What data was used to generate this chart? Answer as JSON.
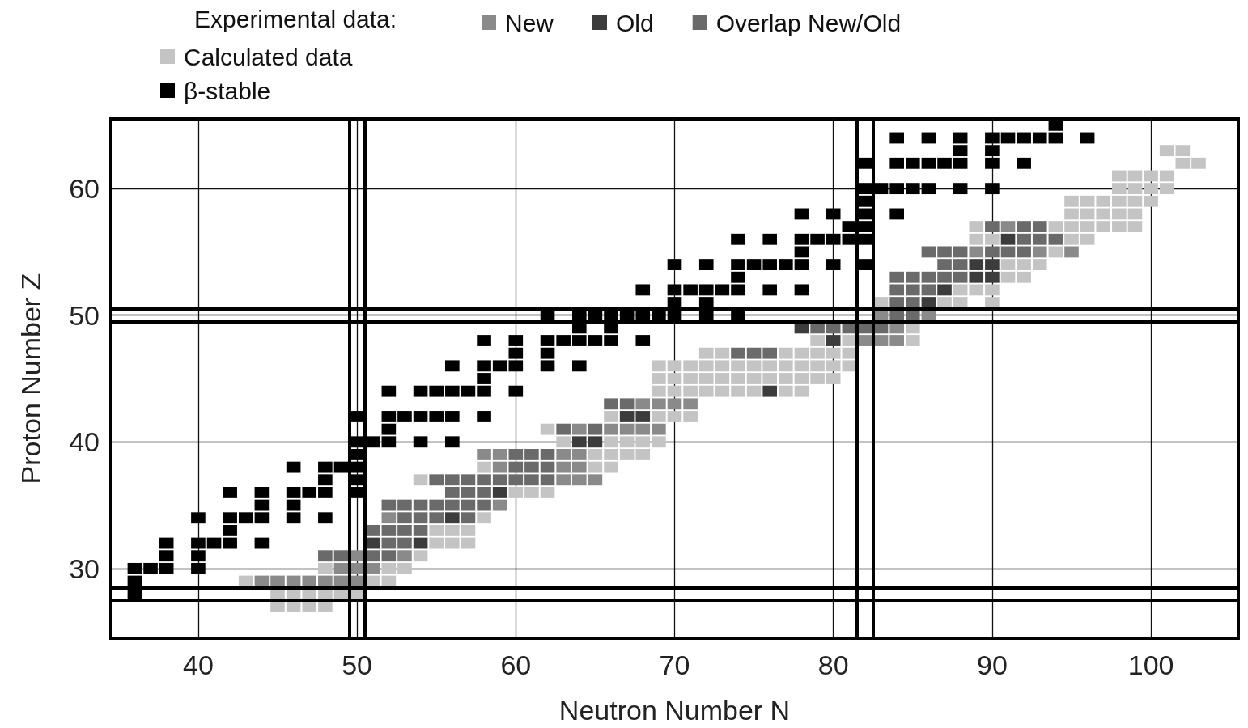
{
  "chart_data": {
    "type": "scatter",
    "xlabel": "Neutron Number N",
    "ylabel": "Proton Number Z",
    "legend_title": "Experimental data:",
    "legend": "top left",
    "marker": "square",
    "grid": true,
    "xlim": [
      34.5,
      105.5
    ],
    "ylim": [
      24.5,
      65.5
    ],
    "xticks": [
      40,
      50,
      60,
      70,
      80,
      90,
      100
    ],
    "yticks": [
      30,
      40,
      50,
      60
    ],
    "ref_lines": [
      {
        "axis": "x",
        "value": 49.5,
        "color": "#000000"
      },
      {
        "axis": "x",
        "value": 50.5,
        "color": "#000000"
      },
      {
        "axis": "x",
        "value": 81.5,
        "color": "#000000"
      },
      {
        "axis": "x",
        "value": 82.5,
        "color": "#000000"
      },
      {
        "axis": "y",
        "value": 27.5,
        "color": "#000000"
      },
      {
        "axis": "y",
        "value": 28.5,
        "color": "#000000"
      },
      {
        "axis": "y",
        "value": 49.5,
        "color": "#000000"
      },
      {
        "axis": "y",
        "value": 50.5,
        "color": "#000000"
      }
    ],
    "series": [
      {
        "name": "New",
        "color": "#8a8a8a",
        "x": [
          44,
          45,
          46,
          47,
          48,
          49,
          50,
          49,
          50,
          51,
          50,
          53,
          52,
          59,
          63,
          64,
          65,
          59,
          63,
          64,
          58,
          59,
          63,
          64,
          64,
          66,
          67,
          68,
          69,
          68,
          69,
          70,
          71,
          82,
          83,
          84,
          84,
          83,
          86,
          89,
          93,
          95,
          91
        ],
        "values": [
          29,
          29,
          29,
          29,
          29,
          29,
          29,
          30,
          30,
          30,
          31,
          31,
          34,
          35,
          37,
          37,
          37,
          38,
          38,
          38,
          39,
          39,
          39,
          39,
          41,
          41,
          41,
          41,
          41,
          43,
          43,
          43,
          43,
          48,
          48,
          48,
          49,
          50,
          50,
          55,
          55,
          55,
          57
        ]
      },
      {
        "name": "Old",
        "color": "#3c3c3c",
        "x": [
          51,
          54,
          56,
          59,
          64,
          65,
          67,
          68,
          76,
          80,
          78,
          86,
          87,
          89,
          90,
          89,
          90,
          91
        ],
        "values": [
          32,
          32,
          34,
          36,
          40,
          40,
          42,
          42,
          44,
          48,
          49,
          51,
          52,
          53,
          53,
          54,
          54,
          56
        ]
      },
      {
        "name": "Overlap New/Old",
        "color": "#6a6a6a",
        "x": [
          48,
          49,
          51,
          52,
          52,
          53,
          51,
          52,
          53,
          54,
          53,
          54,
          55,
          57,
          52,
          53,
          54,
          55,
          56,
          57,
          58,
          56,
          57,
          58,
          55,
          56,
          57,
          58,
          59,
          60,
          61,
          62,
          60,
          61,
          62,
          60,
          61,
          62,
          63,
          65,
          66,
          67,
          74,
          75,
          76,
          79,
          80,
          81,
          82,
          83,
          84,
          85,
          84,
          85,
          84,
          85,
          86,
          84,
          85,
          86,
          87,
          88,
          87,
          88,
          86,
          87,
          88,
          90,
          91,
          92,
          92,
          93,
          94,
          90,
          92,
          93
        ],
        "values": [
          31,
          31,
          31,
          31,
          32,
          32,
          33,
          33,
          33,
          33,
          34,
          34,
          34,
          34,
          35,
          35,
          35,
          35,
          35,
          35,
          35,
          36,
          36,
          36,
          37,
          37,
          37,
          37,
          37,
          37,
          37,
          37,
          38,
          38,
          38,
          39,
          39,
          39,
          41,
          41,
          43,
          43,
          47,
          47,
          47,
          49,
          49,
          49,
          49,
          49,
          50,
          50,
          51,
          51,
          52,
          52,
          52,
          53,
          53,
          53,
          53,
          53,
          54,
          54,
          55,
          55,
          55,
          55,
          55,
          55,
          56,
          56,
          56,
          57,
          57,
          57
        ]
      },
      {
        "name": "Calculated data",
        "color": "#c4c4c4",
        "x": [
          45,
          46,
          47,
          48,
          45,
          46,
          47,
          48,
          49,
          50,
          43,
          51,
          52,
          48,
          52,
          53,
          54,
          55,
          56,
          57,
          55,
          56,
          57,
          58,
          60,
          61,
          62,
          54,
          58,
          65,
          66,
          65,
          66,
          67,
          68,
          63,
          66,
          67,
          68,
          69,
          62,
          66,
          69,
          70,
          71,
          69,
          70,
          71,
          72,
          73,
          74,
          75,
          77,
          78,
          69,
          70,
          71,
          72,
          73,
          74,
          75,
          76,
          77,
          78,
          79,
          80,
          69,
          70,
          71,
          72,
          73,
          74,
          75,
          76,
          77,
          78,
          79,
          80,
          81,
          72,
          73,
          77,
          78,
          79,
          80,
          81,
          79,
          81,
          85,
          85,
          83,
          87,
          88,
          90,
          88,
          89,
          90,
          91,
          92,
          91,
          92,
          93,
          94,
          89,
          90,
          95,
          96,
          89,
          94,
          95,
          96,
          97,
          98,
          99,
          95,
          96,
          97,
          98,
          99,
          95,
          96,
          97,
          98,
          99,
          100,
          98,
          99,
          100,
          101,
          98,
          99,
          100,
          101,
          102,
          103,
          101,
          102
        ],
        "values": [
          27,
          27,
          27,
          27,
          28,
          28,
          28,
          28,
          28,
          28,
          29,
          29,
          29,
          30,
          30,
          30,
          31,
          32,
          32,
          32,
          33,
          33,
          33,
          34,
          36,
          36,
          36,
          37,
          38,
          38,
          38,
          39,
          39,
          39,
          39,
          40,
          40,
          40,
          40,
          40,
          41,
          42,
          42,
          42,
          42,
          44,
          44,
          44,
          44,
          44,
          44,
          44,
          44,
          44,
          45,
          45,
          45,
          45,
          45,
          45,
          45,
          45,
          45,
          45,
          45,
          45,
          46,
          46,
          46,
          46,
          46,
          46,
          46,
          46,
          46,
          46,
          46,
          46,
          46,
          47,
          47,
          47,
          47,
          47,
          47,
          47,
          48,
          48,
          48,
          49,
          51,
          51,
          51,
          51,
          52,
          52,
          52,
          53,
          53,
          54,
          54,
          54,
          55,
          56,
          56,
          56,
          56,
          57,
          57,
          57,
          57,
          57,
          57,
          57,
          58,
          58,
          58,
          58,
          58,
          59,
          59,
          59,
          59,
          59,
          59,
          60,
          60,
          60,
          60,
          61,
          61,
          61,
          61,
          62,
          62,
          63,
          63
        ]
      },
      {
        "name": "β-stable",
        "color": "#000000",
        "x": [
          36,
          36,
          36,
          37,
          38,
          40,
          38,
          40,
          38,
          40,
          41,
          42,
          44,
          42,
          40,
          42,
          43,
          44,
          46,
          48,
          44,
          46,
          42,
          44,
          46,
          47,
          48,
          50,
          48,
          50,
          46,
          48,
          49,
          50,
          50,
          50,
          51,
          52,
          54,
          56,
          52,
          50,
          52,
          53,
          54,
          55,
          56,
          58,
          52,
          54,
          55,
          56,
          57,
          58,
          60,
          58,
          56,
          58,
          59,
          60,
          62,
          64,
          60,
          62,
          58,
          60,
          62,
          63,
          64,
          65,
          66,
          68,
          64,
          66,
          62,
          64,
          65,
          66,
          67,
          68,
          69,
          70,
          72,
          74,
          70,
          72,
          68,
          70,
          71,
          72,
          73,
          74,
          76,
          78,
          74,
          70,
          72,
          74,
          75,
          76,
          77,
          78,
          80,
          82,
          78,
          74,
          76,
          78,
          79,
          80,
          81,
          82,
          81,
          82,
          78,
          80,
          82,
          84,
          82,
          82,
          83,
          84,
          85,
          86,
          88,
          90,
          82,
          84,
          85,
          86,
          87,
          88,
          90,
          92,
          88,
          90,
          84,
          86,
          88,
          90,
          91,
          92,
          93,
          94,
          96,
          94
        ],
        "values": [
          28,
          29,
          30,
          30,
          30,
          30,
          31,
          31,
          32,
          32,
          32,
          32,
          32,
          33,
          34,
          34,
          34,
          34,
          34,
          34,
          35,
          35,
          36,
          36,
          36,
          36,
          36,
          36,
          37,
          37,
          38,
          38,
          38,
          38,
          39,
          40,
          40,
          40,
          40,
          40,
          41,
          42,
          42,
          42,
          42,
          42,
          42,
          42,
          44,
          44,
          44,
          44,
          44,
          44,
          44,
          45,
          46,
          46,
          46,
          46,
          46,
          46,
          47,
          47,
          48,
          48,
          48,
          48,
          48,
          48,
          48,
          48,
          49,
          49,
          50,
          50,
          50,
          50,
          50,
          50,
          50,
          50,
          50,
          50,
          51,
          51,
          52,
          52,
          52,
          52,
          52,
          52,
          52,
          52,
          53,
          54,
          54,
          54,
          54,
          54,
          54,
          54,
          54,
          54,
          55,
          56,
          56,
          56,
          56,
          56,
          56,
          56,
          57,
          57,
          58,
          58,
          58,
          58,
          59,
          60,
          60,
          60,
          60,
          60,
          60,
          60,
          62,
          62,
          62,
          62,
          62,
          62,
          62,
          62,
          63,
          63,
          64,
          64,
          64,
          64,
          64,
          64,
          64,
          64,
          64,
          65
        ]
      }
    ]
  }
}
